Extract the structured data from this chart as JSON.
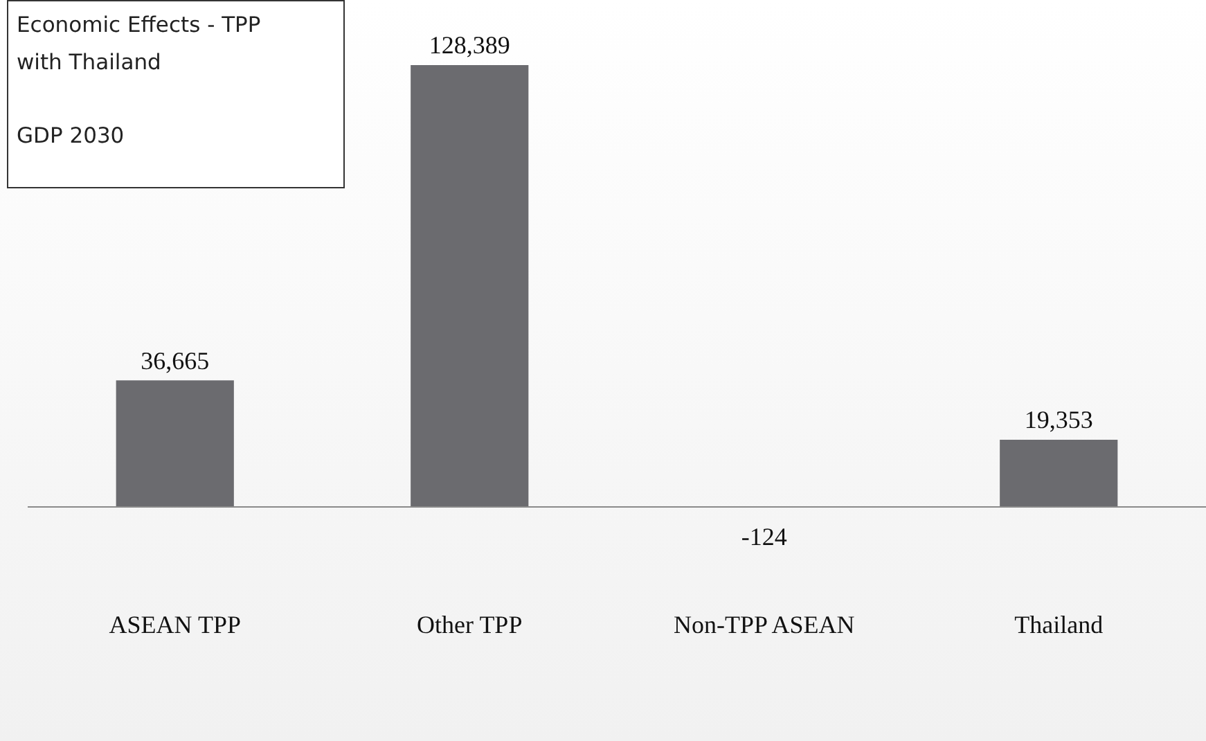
{
  "chart_data": {
    "type": "bar",
    "title": "Economic Effects - TPP with Thailand",
    "subtitle": "GDP 2030",
    "categories": [
      "ASEAN TPP",
      "Other TPP",
      "Non-TPP ASEAN",
      "Thailand"
    ],
    "values": [
      36665,
      128389,
      -124,
      19353
    ],
    "value_labels": [
      "36,665",
      "128,389",
      "-124",
      "19,353"
    ],
    "color": "#6b6b6f",
    "tick_labels": "x",
    "grid": false,
    "legend": false
  }
}
